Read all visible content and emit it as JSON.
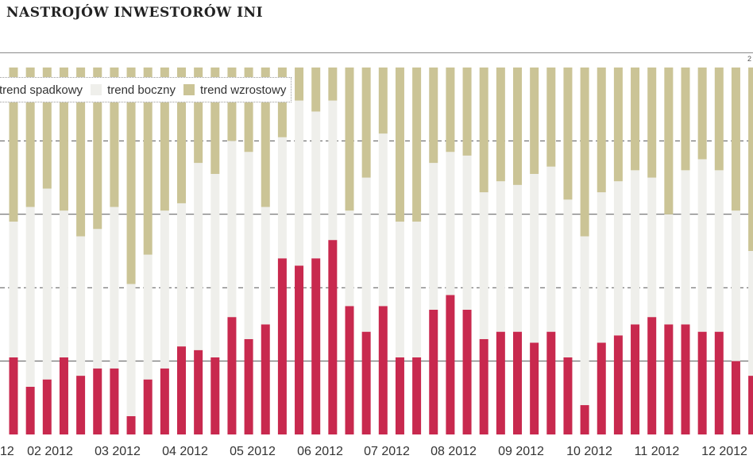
{
  "title": "NASTROJÓW INWESTORÓW INI",
  "corner_mark": "2",
  "colors": {
    "spadkowy": "#c8294e",
    "boczny": "#efefeb",
    "wzrostowy": "#cbc496",
    "grid": "#555555"
  },
  "chart_data": {
    "type": "bar",
    "stacked": true,
    "ylim": [
      0,
      100
    ],
    "grid": true,
    "legend_position": "top-left",
    "x_tick_labels": [
      "12",
      "02 2012",
      "03 2012",
      "04 2012",
      "05 2012",
      "06 2012",
      "07 2012",
      "08 2012",
      "09 2012",
      "10 2012",
      "11 2012",
      "12 2012"
    ],
    "series": [
      {
        "name": "trend spadkowy",
        "values": [
          21,
          13,
          15,
          21,
          16,
          18,
          18,
          5,
          15,
          18,
          24,
          23,
          21,
          32,
          26,
          30,
          48,
          46,
          48,
          53,
          35,
          28,
          35,
          21,
          21,
          34,
          38,
          34,
          26,
          28,
          28,
          25,
          28,
          21,
          8,
          25,
          27,
          30,
          32,
          30,
          30,
          28,
          28,
          20,
          16,
          17
        ]
      },
      {
        "name": "trend boczny",
        "values": [
          37,
          49,
          52,
          40,
          38,
          38,
          44,
          36,
          34,
          43,
          39,
          51,
          50,
          48,
          51,
          32,
          33,
          45,
          40,
          38,
          26,
          42,
          47,
          37,
          37,
          40,
          39,
          42,
          40,
          41,
          40,
          46,
          45,
          43,
          46,
          41,
          42,
          42,
          38,
          30,
          42,
          47,
          44,
          41,
          34,
          37
        ]
      },
      {
        "name": "trend wzrostowy",
        "values": [
          42,
          38,
          33,
          39,
          46,
          44,
          38,
          59,
          51,
          39,
          37,
          26,
          29,
          20,
          23,
          38,
          19,
          9,
          12,
          9,
          39,
          30,
          18,
          42,
          42,
          26,
          23,
          24,
          34,
          31,
          32,
          29,
          27,
          36,
          46,
          34,
          31,
          28,
          30,
          40,
          28,
          25,
          28,
          39,
          50,
          46
        ]
      }
    ]
  }
}
